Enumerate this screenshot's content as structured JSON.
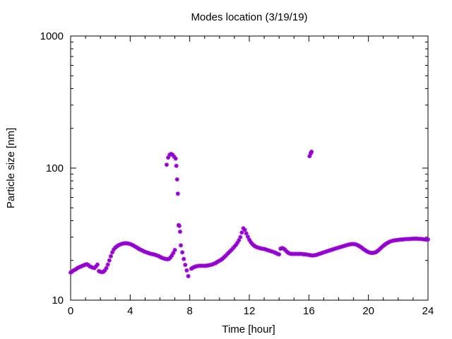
{
  "chart_data": {
    "type": "scatter",
    "title": "Modes location (3/19/19)",
    "xlabel": "Time [hour]",
    "ylabel": "Particle size [nm]",
    "xlim": [
      0,
      24
    ],
    "ylim": [
      10,
      1000
    ],
    "yscale": "log",
    "grid": false,
    "marker_color": "#9400d3",
    "x_ticks": [
      0,
      4,
      8,
      12,
      16,
      20,
      24
    ],
    "x_tick_labels": [
      "0",
      "4",
      "8",
      "12",
      "16",
      "20",
      "24"
    ],
    "y_ticks": [
      10,
      100,
      1000
    ],
    "y_tick_labels": [
      "10",
      "100",
      "1000"
    ],
    "series": [
      {
        "points": [
          [
            0.0,
            16.2
          ],
          [
            0.1,
            16.5
          ],
          [
            0.2,
            16.8
          ],
          [
            0.3,
            17.0
          ],
          [
            0.4,
            17.3
          ],
          [
            0.5,
            17.6
          ],
          [
            0.6,
            17.8
          ],
          [
            0.7,
            18.0
          ],
          [
            0.8,
            18.2
          ],
          [
            0.9,
            18.4
          ],
          [
            1.0,
            18.6
          ],
          [
            1.1,
            18.7
          ],
          [
            1.2,
            18.4
          ],
          [
            1.3,
            18.0
          ],
          [
            1.4,
            17.8
          ],
          [
            1.5,
            17.6
          ],
          [
            1.6,
            17.5
          ],
          [
            1.7,
            18.0
          ],
          [
            1.8,
            18.6
          ],
          [
            1.9,
            16.6
          ],
          [
            2.0,
            16.4
          ],
          [
            2.1,
            16.3
          ],
          [
            2.2,
            16.4
          ],
          [
            2.3,
            16.8
          ],
          [
            2.4,
            17.5
          ],
          [
            2.5,
            18.6
          ],
          [
            2.6,
            20.0
          ],
          [
            2.7,
            21.5
          ],
          [
            2.8,
            23.0
          ],
          [
            2.9,
            24.2
          ],
          [
            3.0,
            25.0
          ],
          [
            3.1,
            25.5
          ],
          [
            3.2,
            26.0
          ],
          [
            3.3,
            26.3
          ],
          [
            3.4,
            26.6
          ],
          [
            3.5,
            26.8
          ],
          [
            3.6,
            26.9
          ],
          [
            3.7,
            27.0
          ],
          [
            3.8,
            26.9
          ],
          [
            3.9,
            26.8
          ],
          [
            4.0,
            26.6
          ],
          [
            4.1,
            26.3
          ],
          [
            4.2,
            26.0
          ],
          [
            4.3,
            25.6
          ],
          [
            4.4,
            25.2
          ],
          [
            4.5,
            24.8
          ],
          [
            4.6,
            24.4
          ],
          [
            4.7,
            24.1
          ],
          [
            4.8,
            23.8
          ],
          [
            4.9,
            23.5
          ],
          [
            5.0,
            23.2
          ],
          [
            5.1,
            23.0
          ],
          [
            5.2,
            22.8
          ],
          [
            5.3,
            22.6
          ],
          [
            5.4,
            22.4
          ],
          [
            5.5,
            22.3
          ],
          [
            5.6,
            22.2
          ],
          [
            5.7,
            22.0
          ],
          [
            5.8,
            21.8
          ],
          [
            5.9,
            21.6
          ],
          [
            6.0,
            21.3
          ],
          [
            6.1,
            21.0
          ],
          [
            6.2,
            20.8
          ],
          [
            6.3,
            20.6
          ],
          [
            6.4,
            20.5
          ],
          [
            6.5,
            20.4
          ],
          [
            6.6,
            20.5
          ],
          [
            6.7,
            21.0
          ],
          [
            6.8,
            21.8
          ],
          [
            6.9,
            22.8
          ],
          [
            7.0,
            24.0
          ],
          [
            6.45,
            106
          ],
          [
            6.55,
            120
          ],
          [
            6.65,
            126
          ],
          [
            6.75,
            128
          ],
          [
            6.85,
            126
          ],
          [
            6.95,
            122
          ],
          [
            7.05,
            118
          ],
          [
            7.1,
            104
          ],
          [
            7.15,
            82
          ],
          [
            7.2,
            64
          ],
          [
            7.25,
            37
          ],
          [
            7.3,
            36.5
          ],
          [
            7.35,
            33
          ],
          [
            7.4,
            26
          ],
          [
            7.5,
            23
          ],
          [
            7.6,
            20.5
          ],
          [
            7.7,
            18.5
          ],
          [
            7.8,
            16.8
          ],
          [
            7.9,
            15.2
          ],
          [
            8.1,
            17.3
          ],
          [
            8.2,
            17.6
          ],
          [
            8.3,
            17.8
          ],
          [
            8.4,
            18.0
          ],
          [
            8.5,
            18.1
          ],
          [
            8.6,
            18.2
          ],
          [
            8.7,
            18.2
          ],
          [
            8.8,
            18.2
          ],
          [
            8.9,
            18.2
          ],
          [
            9.0,
            18.2
          ],
          [
            9.1,
            18.2
          ],
          [
            9.2,
            18.3
          ],
          [
            9.3,
            18.4
          ],
          [
            9.4,
            18.5
          ],
          [
            9.5,
            18.6
          ],
          [
            9.6,
            18.8
          ],
          [
            9.7,
            19.0
          ],
          [
            9.8,
            19.3
          ],
          [
            9.9,
            19.6
          ],
          [
            10.0,
            19.9
          ],
          [
            10.1,
            20.2
          ],
          [
            10.2,
            20.6
          ],
          [
            10.3,
            21.1
          ],
          [
            10.4,
            21.6
          ],
          [
            10.5,
            22.2
          ],
          [
            10.6,
            22.8
          ],
          [
            10.7,
            23.4
          ],
          [
            10.8,
            24.0
          ],
          [
            10.9,
            24.7
          ],
          [
            11.0,
            25.4
          ],
          [
            11.1,
            26.2
          ],
          [
            11.2,
            27.2
          ],
          [
            11.3,
            28.4
          ],
          [
            11.4,
            30.0
          ],
          [
            11.5,
            32.5
          ],
          [
            11.6,
            35.0
          ],
          [
            11.7,
            34.0
          ],
          [
            11.8,
            32.0
          ],
          [
            11.9,
            30.2
          ],
          [
            12.0,
            28.7
          ],
          [
            12.1,
            27.5
          ],
          [
            12.2,
            26.6
          ],
          [
            12.3,
            26.0
          ],
          [
            12.4,
            25.5
          ],
          [
            12.5,
            25.2
          ],
          [
            12.6,
            25.0
          ],
          [
            12.7,
            24.8
          ],
          [
            12.8,
            24.6
          ],
          [
            12.9,
            24.5
          ],
          [
            13.0,
            24.4
          ],
          [
            13.1,
            24.2
          ],
          [
            13.2,
            24.0
          ],
          [
            13.3,
            23.8
          ],
          [
            13.4,
            23.6
          ],
          [
            13.5,
            23.4
          ],
          [
            13.6,
            23.2
          ],
          [
            13.7,
            23.0
          ],
          [
            13.8,
            22.7
          ],
          [
            13.9,
            22.4
          ],
          [
            14.0,
            22.2
          ],
          [
            14.1,
            24.5
          ],
          [
            14.2,
            24.8
          ],
          [
            14.3,
            24.6
          ],
          [
            14.4,
            24.1
          ],
          [
            14.5,
            23.4
          ],
          [
            14.6,
            22.9
          ],
          [
            14.7,
            22.6
          ],
          [
            14.8,
            22.4
          ],
          [
            14.9,
            22.4
          ],
          [
            15.0,
            22.4
          ],
          [
            15.1,
            22.4
          ],
          [
            15.2,
            22.4
          ],
          [
            15.3,
            22.4
          ],
          [
            15.4,
            22.4
          ],
          [
            15.5,
            22.4
          ],
          [
            15.6,
            22.3
          ],
          [
            15.7,
            22.2
          ],
          [
            15.8,
            22.2
          ],
          [
            15.9,
            22.1
          ],
          [
            16.0,
            22.0
          ],
          [
            16.1,
            21.9
          ],
          [
            16.2,
            21.8
          ],
          [
            16.3,
            21.8
          ],
          [
            16.4,
            21.9
          ],
          [
            16.5,
            22.0
          ],
          [
            16.6,
            22.2
          ],
          [
            16.7,
            22.4
          ],
          [
            16.8,
            22.6
          ],
          [
            16.9,
            22.8
          ],
          [
            17.0,
            23.0
          ],
          [
            17.1,
            23.2
          ],
          [
            17.2,
            23.4
          ],
          [
            17.3,
            23.6
          ],
          [
            17.4,
            23.8
          ],
          [
            17.5,
            24.0
          ],
          [
            17.6,
            24.2
          ],
          [
            17.7,
            24.4
          ],
          [
            17.8,
            24.6
          ],
          [
            17.9,
            24.8
          ],
          [
            18.0,
            25.0
          ],
          [
            18.1,
            25.2
          ],
          [
            18.2,
            25.4
          ],
          [
            18.3,
            25.6
          ],
          [
            18.4,
            25.8
          ],
          [
            18.5,
            26.0
          ],
          [
            18.6,
            26.2
          ],
          [
            18.7,
            26.4
          ],
          [
            18.8,
            26.5
          ],
          [
            18.9,
            26.6
          ],
          [
            19.0,
            26.6
          ],
          [
            19.1,
            26.5
          ],
          [
            19.2,
            26.3
          ],
          [
            19.3,
            26.0
          ],
          [
            19.4,
            25.6
          ],
          [
            19.5,
            25.2
          ],
          [
            19.6,
            24.7
          ],
          [
            19.7,
            24.2
          ],
          [
            19.8,
            23.8
          ],
          [
            19.9,
            23.4
          ],
          [
            20.0,
            23.1
          ],
          [
            20.1,
            22.9
          ],
          [
            20.2,
            22.8
          ],
          [
            20.3,
            22.8
          ],
          [
            20.4,
            22.9
          ],
          [
            20.5,
            23.1
          ],
          [
            20.6,
            23.5
          ],
          [
            20.7,
            24.0
          ],
          [
            20.8,
            24.6
          ],
          [
            20.9,
            25.2
          ],
          [
            21.0,
            25.8
          ],
          [
            21.1,
            26.3
          ],
          [
            21.2,
            26.8
          ],
          [
            21.3,
            27.2
          ],
          [
            21.4,
            27.6
          ],
          [
            21.5,
            27.9
          ],
          [
            21.6,
            28.1
          ],
          [
            21.7,
            28.3
          ],
          [
            21.8,
            28.4
          ],
          [
            21.9,
            28.5
          ],
          [
            22.0,
            28.6
          ],
          [
            22.1,
            28.7
          ],
          [
            22.2,
            28.8
          ],
          [
            22.3,
            28.8
          ],
          [
            22.4,
            28.9
          ],
          [
            22.5,
            29.0
          ],
          [
            22.6,
            29.0
          ],
          [
            22.7,
            29.0
          ],
          [
            22.8,
            29.1
          ],
          [
            22.9,
            29.1
          ],
          [
            23.0,
            29.2
          ],
          [
            23.1,
            29.2
          ],
          [
            23.2,
            29.2
          ],
          [
            23.3,
            29.2
          ],
          [
            23.4,
            29.1
          ],
          [
            23.5,
            29.1
          ],
          [
            23.6,
            29.0
          ],
          [
            23.7,
            28.9
          ],
          [
            23.8,
            28.8
          ],
          [
            23.9,
            28.7
          ],
          [
            24.0,
            28.8
          ],
          [
            16.05,
            123
          ],
          [
            16.12,
            129
          ],
          [
            16.18,
            133
          ]
        ]
      }
    ]
  }
}
